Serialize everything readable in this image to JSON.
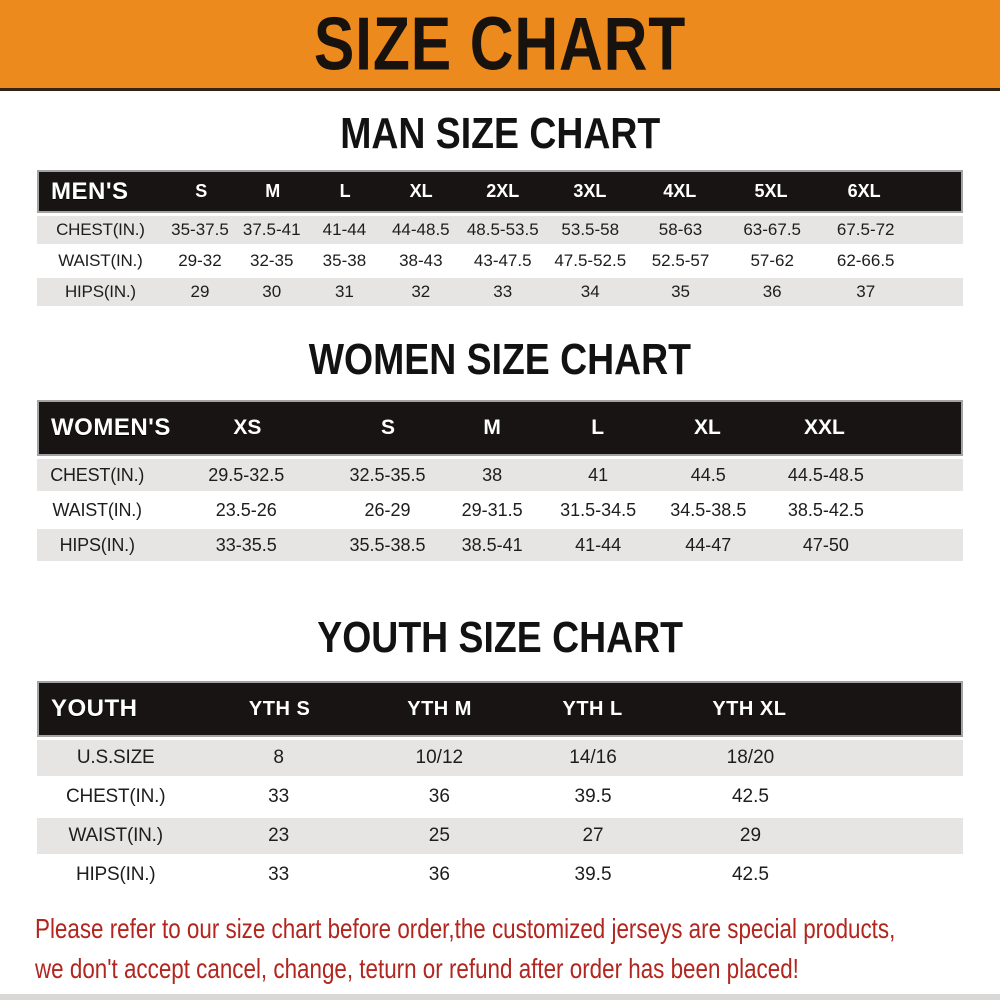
{
  "banner": {
    "title": "SIZE CHART"
  },
  "sections": [
    {
      "id": "men",
      "title": "MAN SIZE CHART",
      "header_label": "MEN'S",
      "columns": [
        "S",
        "M",
        "L",
        "XL",
        "2XL",
        "3XL",
        "4XL",
        "5XL",
        "6XL"
      ],
      "rows": [
        {
          "label": "CHEST(IN.)",
          "values": [
            "35-37.5",
            "37.5-41",
            "41-44",
            "44-48.5",
            "48.5-53.5",
            "53.5-58",
            "58-63",
            "63-67.5",
            "67.5-72"
          ]
        },
        {
          "label": "WAIST(IN.)",
          "values": [
            "29-32",
            "32-35",
            "35-38",
            "38-43",
            "43-47.5",
            "47.5-52.5",
            "52.5-57",
            "57-62",
            "62-66.5"
          ]
        },
        {
          "label": "HIPS(IN.)",
          "values": [
            "29",
            "30",
            "31",
            "32",
            "33",
            "34",
            "35",
            "36",
            "37"
          ]
        }
      ]
    },
    {
      "id": "women",
      "title": "WOMEN SIZE CHART",
      "header_label": "WOMEN'S",
      "columns": [
        "XS",
        "S",
        "M",
        "L",
        "XL",
        "XXL"
      ],
      "rows": [
        {
          "label": "CHEST(IN.)",
          "values": [
            "29.5-32.5",
            "32.5-35.5",
            "38",
            "41",
            "44.5",
            "44.5-48.5"
          ]
        },
        {
          "label": "WAIST(IN.)",
          "values": [
            "23.5-26",
            "26-29",
            "29-31.5",
            "31.5-34.5",
            "34.5-38.5",
            "38.5-42.5"
          ]
        },
        {
          "label": "HIPS(IN.)",
          "values": [
            "33-35.5",
            "35.5-38.5",
            "38.5-41",
            "41-44",
            "44-47",
            "47-50"
          ]
        }
      ]
    },
    {
      "id": "youth",
      "title": "YOUTH SIZE CHART",
      "header_label": "YOUTH",
      "columns": [
        "YTH S",
        "YTH M",
        "YTH L",
        "YTH XL"
      ],
      "rows": [
        {
          "label": "U.S.SIZE",
          "values": [
            "8",
            "10/12",
            "14/16",
            "18/20"
          ]
        },
        {
          "label": "CHEST(IN.)",
          "values": [
            "33",
            "36",
            "39.5",
            "42.5"
          ]
        },
        {
          "label": "WAIST(IN.)",
          "values": [
            "23",
            "25",
            "27",
            "29"
          ]
        },
        {
          "label": "HIPS(IN.)",
          "values": [
            "33",
            "36",
            "39.5",
            "42.5"
          ]
        }
      ]
    }
  ],
  "disclaimer": {
    "line1": "Please refer to our size chart before order,the customized jerseys are special products,",
    "line2": "we don't accept cancel, change, teturn or refund after order has been placed!"
  },
  "colors": {
    "banner_bg": "#ec8a1e",
    "banner_text": "#17120d",
    "table_header_bg": "#181414",
    "table_header_text": "#ffffff",
    "row_alt_bg": "#e6e5e3",
    "row_text": "#1d1d1d",
    "disclaimer_red": "#b1271f"
  }
}
